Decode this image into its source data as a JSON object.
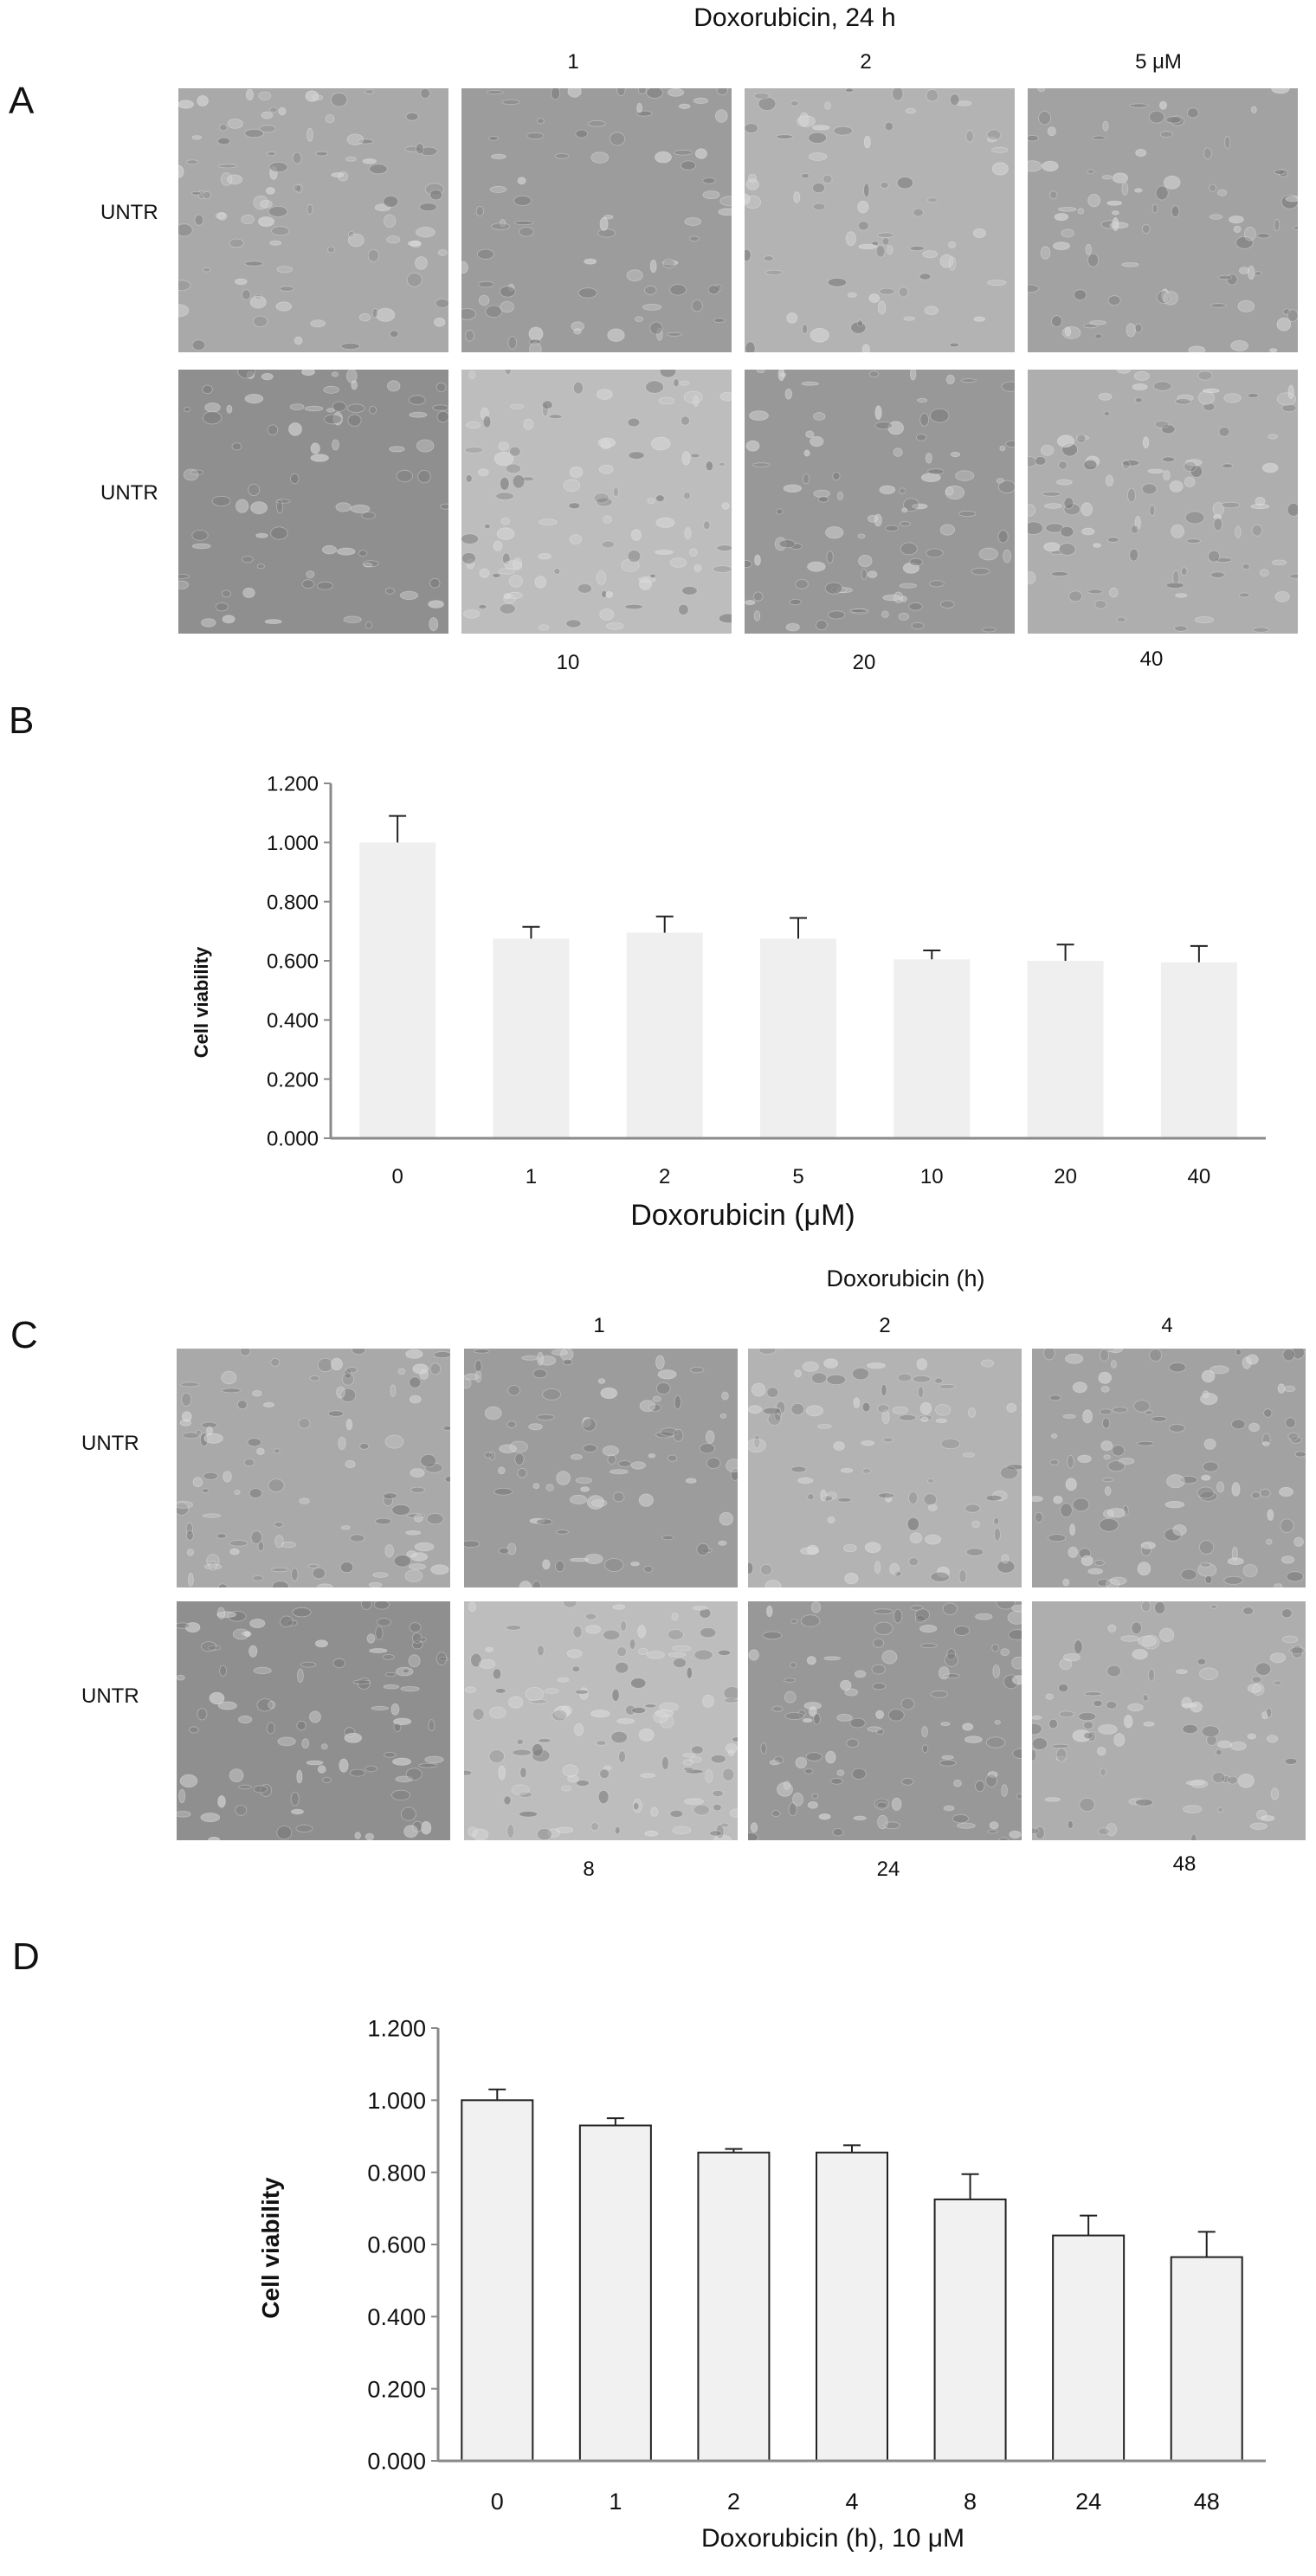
{
  "panels": {
    "A": {
      "letter": "A",
      "title": "Doxorubicin, 24 h",
      "top_labels": [
        "1",
        "2",
        "5 μM"
      ],
      "bottom_labels": [
        "10",
        "20",
        "40"
      ],
      "row_labels": [
        "UNTR",
        "UNTR"
      ]
    },
    "B": {
      "letter": "B"
    },
    "C": {
      "letter": "C",
      "title": "Doxorubicin  (h)",
      "top_labels": [
        "1",
        "2",
        "4"
      ],
      "bottom_labels": [
        "8",
        "24",
        "48"
      ],
      "row_labels": [
        "UNTR",
        "UNTR"
      ]
    },
    "D": {
      "letter": "D"
    }
  },
  "chart_data": [
    {
      "type": "bar",
      "categories": [
        "0",
        "1",
        "2",
        "5",
        "10",
        "20",
        "40"
      ],
      "values": [
        1.0,
        0.675,
        0.695,
        0.675,
        0.605,
        0.6,
        0.595
      ],
      "errors": [
        0.09,
        0.04,
        0.055,
        0.07,
        0.03,
        0.055,
        0.055
      ],
      "xlabel": "Doxorubicin  (μM)",
      "ylabel": "Cell viability",
      "ylim": [
        0,
        1.2
      ],
      "yticks": [
        "0.000",
        "0.200",
        "0.400",
        "0.600",
        "0.800",
        "1.000",
        "1.200"
      ],
      "grid": false,
      "bar_color": "#efefef",
      "bar_outline": false
    },
    {
      "type": "bar",
      "categories": [
        "0",
        "1",
        "2",
        "4",
        "8",
        "24",
        "48"
      ],
      "values": [
        1.0,
        0.93,
        0.855,
        0.855,
        0.725,
        0.625,
        0.565
      ],
      "errors": [
        0.03,
        0.02,
        0.01,
        0.02,
        0.07,
        0.055,
        0.07
      ],
      "xlabel": "Doxorubicin (h), 10 μM",
      "ylabel": "Cell viability",
      "ylim": [
        0,
        1.2
      ],
      "yticks": [
        "0.000",
        "0.200",
        "0.400",
        "0.600",
        "0.800",
        "1.000",
        "1.200"
      ],
      "grid": false,
      "bar_color": "#f1f1f1",
      "bar_outline": true
    }
  ]
}
